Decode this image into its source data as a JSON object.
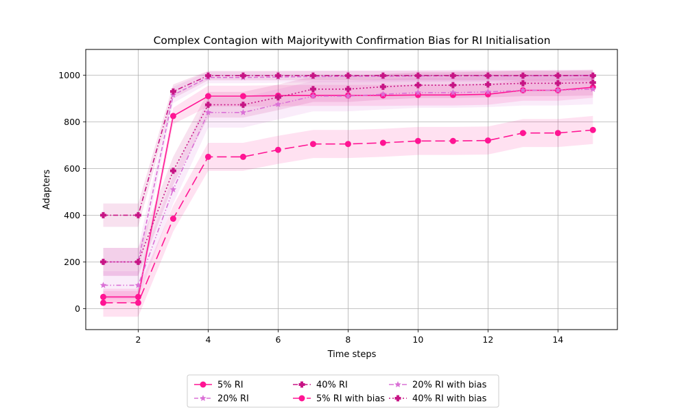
{
  "chart_data": {
    "type": "line",
    "title": "Complex Contagion with Majoritywith Confirmation Bias for RI Initialisation",
    "xlabel": "Time steps",
    "ylabel": "Adapters",
    "xlim": [
      0.5,
      15.7
    ],
    "ylim": [
      -90,
      1110
    ],
    "xticks": [
      2,
      4,
      6,
      8,
      10,
      12,
      14
    ],
    "yticks": [
      0,
      200,
      400,
      600,
      800,
      1000
    ],
    "grid": true,
    "legend_position": "bottom-center",
    "x": [
      1,
      2,
      3,
      4,
      5,
      6,
      7,
      8,
      9,
      10,
      11,
      12,
      13,
      14,
      15
    ],
    "series": [
      {
        "name": "5% RI",
        "color": "#ff1493",
        "dash": "solid",
        "marker": "circle",
        "values": [
          50,
          50,
          825,
          910,
          910,
          912,
          913,
          913,
          913,
          915,
          915,
          918,
          935,
          935,
          948
        ],
        "band": [
          25,
          25,
          35,
          45,
          45,
          45,
          45,
          45,
          45,
          45,
          45,
          45,
          45,
          45,
          45
        ]
      },
      {
        "name": "20% RI",
        "color": "#da70d6",
        "dash": "dashed",
        "marker": "star",
        "values": [
          200,
          200,
          915,
          990,
          990,
          992,
          994,
          995,
          995,
          996,
          997,
          997,
          997,
          998,
          998
        ],
        "band": [
          60,
          60,
          35,
          25,
          25,
          25,
          25,
          25,
          25,
          25,
          25,
          25,
          25,
          25,
          25
        ]
      },
      {
        "name": "40% RI",
        "color": "#c71585",
        "dash": "dashdot",
        "marker": "plus",
        "values": [
          400,
          400,
          930,
          998,
          998,
          998,
          998,
          998,
          998,
          998,
          998,
          998,
          998,
          998,
          998
        ],
        "band": [
          50,
          50,
          30,
          20,
          20,
          20,
          20,
          20,
          20,
          20,
          20,
          20,
          20,
          20,
          20
        ]
      },
      {
        "name": "5% RI with bias",
        "color": "#ff1493",
        "dash": "longdash",
        "marker": "circle",
        "values": [
          25,
          25,
          385,
          650,
          650,
          680,
          705,
          705,
          710,
          718,
          718,
          720,
          752,
          752,
          765
        ],
        "band": [
          60,
          60,
          55,
          60,
          60,
          60,
          60,
          60,
          60,
          60,
          60,
          60,
          60,
          60,
          60
        ]
      },
      {
        "name": "20% RI with bias",
        "color": "#da70d6",
        "dash": "dashdotdot",
        "marker": "star",
        "values": [
          100,
          100,
          510,
          840,
          840,
          875,
          910,
          910,
          918,
          925,
          925,
          928,
          935,
          935,
          940
        ],
        "band": [
          60,
          60,
          60,
          65,
          65,
          65,
          65,
          65,
          65,
          65,
          65,
          65,
          65,
          65,
          65
        ]
      },
      {
        "name": "40% RI with bias",
        "color": "#c71585",
        "dash": "dotted",
        "marker": "plus",
        "values": [
          200,
          200,
          590,
          873,
          873,
          905,
          940,
          940,
          950,
          957,
          957,
          960,
          965,
          965,
          968
        ],
        "band": [
          60,
          60,
          60,
          55,
          55,
          55,
          55,
          55,
          55,
          55,
          55,
          55,
          55,
          55,
          55
        ]
      }
    ]
  }
}
